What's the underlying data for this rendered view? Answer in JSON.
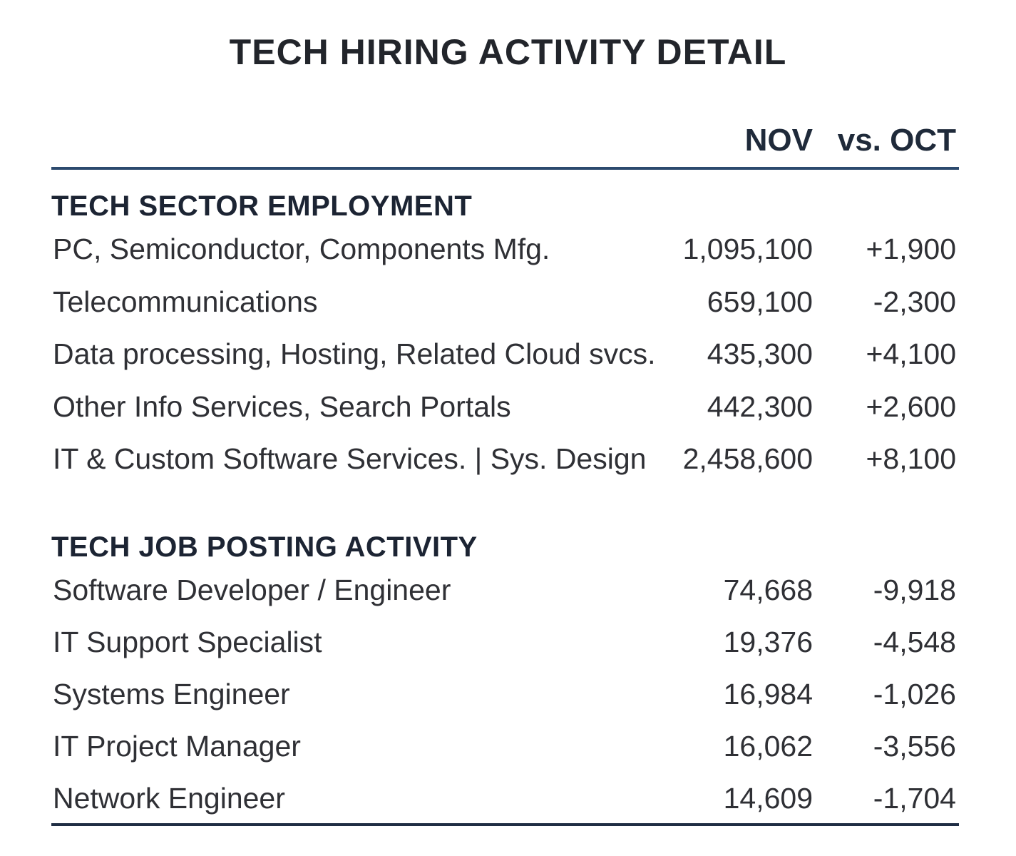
{
  "title": "TECH HIRING ACTIVITY DETAIL",
  "columns": {
    "nov": "NOV",
    "vs_oct": "vs. OCT"
  },
  "chart_data": {
    "type": "table",
    "title": "TECH HIRING ACTIVITY DETAIL",
    "columns": [
      "",
      "NOV",
      "vs. OCT"
    ],
    "sections": [
      {
        "title": "TECH SECTOR EMPLOYMENT",
        "rows": [
          {
            "label": "PC, Semiconductor, Components Mfg.",
            "nov": "1,095,100",
            "change": "+1,900"
          },
          {
            "label": "Telecommunications",
            "nov": "659,100",
            "change": "-2,300"
          },
          {
            "label": "Data processing, Hosting, Related Cloud svcs.",
            "nov": "435,300",
            "change": "+4,100"
          },
          {
            "label": "Other Info Services, Search Portals",
            "nov": "442,300",
            "change": "+2,600"
          },
          {
            "label": "IT & Custom Software Services. | Sys. Design",
            "nov": "2,458,600",
            "change": "+8,100"
          }
        ]
      },
      {
        "title": "TECH JOB POSTING ACTIVITY",
        "rows": [
          {
            "label": "Software Developer / Engineer",
            "nov": "74,668",
            "change": "-9,918"
          },
          {
            "label": "IT Support Specialist",
            "nov": "19,376",
            "change": "-4,548"
          },
          {
            "label": "Systems Engineer",
            "nov": "16,984",
            "change": "-1,026"
          },
          {
            "label": "IT Project Manager",
            "nov": "16,062",
            "change": "-3,556"
          },
          {
            "label": "Network Engineer",
            "nov": "14,609",
            "change": "-1,704"
          }
        ]
      }
    ]
  }
}
